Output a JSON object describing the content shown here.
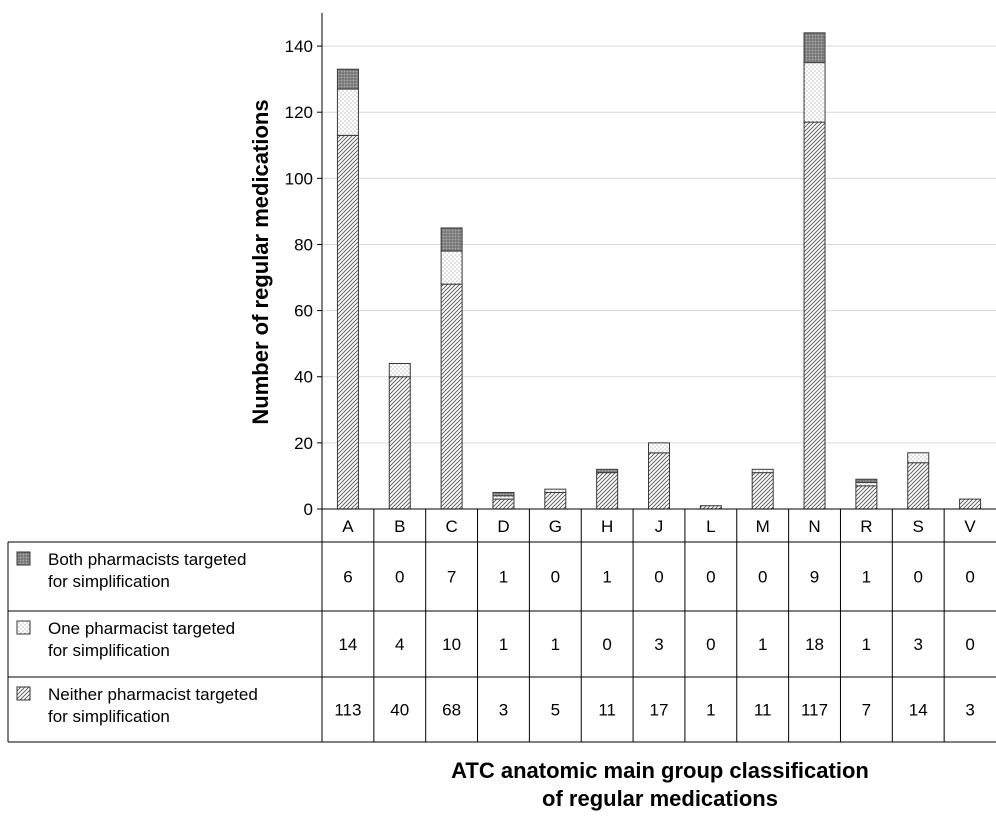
{
  "chart_data": {
    "type": "bar",
    "stacked": true,
    "categories": [
      "A",
      "B",
      "C",
      "D",
      "G",
      "H",
      "J",
      "L",
      "M",
      "N",
      "R",
      "S",
      "V"
    ],
    "series": [
      {
        "name": "Neither pharmacist targeted for simplification",
        "values": [
          113,
          40,
          68,
          3,
          5,
          11,
          17,
          1,
          11,
          117,
          7,
          14,
          3
        ],
        "pattern": "diagonal-hatch"
      },
      {
        "name": "One pharmacist targeted for simplification",
        "values": [
          14,
          4,
          10,
          1,
          1,
          0,
          3,
          0,
          1,
          18,
          1,
          3,
          0
        ],
        "pattern": "dotted"
      },
      {
        "name": "Both pharmacists targeted for simplification",
        "values": [
          6,
          0,
          7,
          1,
          0,
          1,
          0,
          0,
          0,
          9,
          1,
          0,
          0
        ],
        "pattern": "dark-dotted"
      }
    ],
    "table_rows": [
      {
        "label_lines": [
          "Both pharmacists targeted",
          "for simplification"
        ],
        "series_index": 2
      },
      {
        "label_lines": [
          "One pharmacist targeted",
          "for simplification"
        ],
        "series_index": 1
      },
      {
        "label_lines": [
          "Neither pharmacist targeted",
          "for simplification"
        ],
        "series_index": 0
      }
    ],
    "ylabel": "Number of regular medications",
    "xlabel_lines": [
      "ATC anatomic main group classification",
      "of regular medications"
    ],
    "ylim": [
      0,
      150
    ],
    "yticks": [
      0,
      20,
      40,
      60,
      80,
      100,
      120,
      140
    ],
    "grid": true,
    "colors": {
      "bar_fill": "#ffffff",
      "bar_stroke": "#3a3a3a",
      "grid": "#d9d9d9",
      "hatch": "#555555",
      "dark": "#7a7a7a"
    }
  }
}
